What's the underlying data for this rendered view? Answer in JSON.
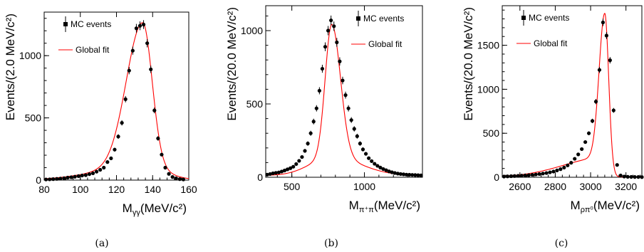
{
  "chart_data": [
    {
      "type": "scatter",
      "panel": "a",
      "caption": "(a)",
      "xlabel": "M_{γγ}(MeV/c²)",
      "ylabel": "Events/(2.0 MeV/c²)",
      "xlim": [
        80,
        160
      ],
      "ylim": [
        0,
        1350
      ],
      "xticks": [
        80,
        100,
        120,
        140,
        160
      ],
      "yticks": [
        0,
        500,
        1000
      ],
      "legend": {
        "position": "top-left",
        "entries": [
          "MC events",
          "Global fit"
        ]
      },
      "series": [
        {
          "name": "MC events",
          "x": [
            81,
            83,
            85,
            87,
            89,
            91,
            93,
            95,
            97,
            99,
            101,
            103,
            105,
            107,
            109,
            111,
            113,
            115,
            117,
            119,
            121,
            123,
            125,
            127,
            129,
            131,
            133,
            135,
            137,
            139,
            141,
            143,
            145,
            147,
            149,
            151,
            153,
            155,
            157
          ],
          "y": [
            5,
            6,
            8,
            10,
            12,
            15,
            20,
            23,
            27,
            32,
            37,
            40,
            48,
            55,
            68,
            83,
            100,
            145,
            175,
            245,
            350,
            460,
            650,
            880,
            1040,
            1220,
            1240,
            1250,
            1100,
            890,
            560,
            335,
            205,
            100,
            50,
            25,
            15,
            8,
            5
          ]
        },
        {
          "name": "Global fit",
          "curve": "peak",
          "peak": {
            "mu": 134.5,
            "amp": 1265,
            "sigL": 9.0,
            "sigR": 5.2,
            "tailL": 25.0,
            "tailR": 12.0,
            "fracTail": 0.09,
            "bkg": 0
          }
        }
      ]
    },
    {
      "type": "scatter",
      "panel": "b",
      "caption": "(b)",
      "xlabel": "M_{π⁺π}(MeV/c²)",
      "ylabel": "Events/(20.0 MeV/c²)",
      "xlim": [
        320,
        1400
      ],
      "ylim": [
        0,
        1170
      ],
      "xticks": [
        500,
        1000
      ],
      "yticks": [
        0,
        500,
        1000
      ],
      "legend": {
        "position": "top-right",
        "entries": [
          "MC events",
          "Global fit"
        ]
      },
      "series": [
        {
          "name": "MC events",
          "x": [
            330,
            350,
            370,
            390,
            410,
            430,
            450,
            470,
            490,
            510,
            530,
            550,
            570,
            590,
            610,
            630,
            650,
            670,
            690,
            710,
            730,
            750,
            770,
            790,
            810,
            830,
            850,
            870,
            890,
            910,
            930,
            950,
            970,
            990,
            1010,
            1030,
            1050,
            1070,
            1090,
            1110,
            1130,
            1150,
            1170,
            1190,
            1210,
            1230,
            1250,
            1270,
            1290,
            1310,
            1330,
            1350,
            1370,
            1390
          ],
          "y": [
            18,
            22,
            27,
            30,
            33,
            39,
            46,
            54,
            62,
            72,
            90,
            112,
            138,
            180,
            230,
            300,
            380,
            470,
            590,
            740,
            890,
            1000,
            1070,
            1030,
            920,
            790,
            660,
            560,
            470,
            390,
            330,
            280,
            230,
            190,
            160,
            130,
            110,
            92,
            78,
            66,
            56,
            48,
            40,
            34,
            29,
            25,
            22,
            20,
            18,
            17,
            16,
            15,
            14,
            13
          ]
        },
        {
          "name": "Global fit",
          "curve": "peak",
          "peak": {
            "mu": 775,
            "amp": 1030,
            "sigL": 45,
            "sigR": 60,
            "tailL": 150,
            "tailR": 200,
            "fracTail": 0.12,
            "bkg": 12
          }
        }
      ]
    },
    {
      "type": "scatter",
      "panel": "c",
      "caption": "(c)",
      "xlabel": "M_{ρπ⁰}(MeV/c²)",
      "ylabel": "Events/(20.0 MeV/c²)",
      "xlim": [
        2500,
        3290
      ],
      "ylim": [
        0,
        1950
      ],
      "xticks": [
        2600,
        2800,
        3000,
        3200
      ],
      "yticks": [
        0,
        500,
        1000,
        1500
      ],
      "legend": {
        "position": "top-left",
        "entries": [
          "MC events",
          "Global fit"
        ]
      },
      "series": [
        {
          "name": "MC events",
          "x": [
            2510,
            2530,
            2550,
            2570,
            2590,
            2610,
            2630,
            2650,
            2670,
            2690,
            2710,
            2730,
            2750,
            2770,
            2790,
            2810,
            2830,
            2850,
            2870,
            2890,
            2910,
            2930,
            2950,
            2970,
            2990,
            3010,
            3030,
            3050,
            3070,
            3090,
            3110,
            3130,
            3150,
            3170,
            3190,
            3210,
            3230,
            3250,
            3270,
            3290
          ],
          "y": [
            8,
            10,
            12,
            14,
            16,
            18,
            21,
            24,
            28,
            32,
            37,
            42,
            48,
            56,
            65,
            78,
            92,
            110,
            135,
            165,
            210,
            260,
            320,
            400,
            500,
            640,
            860,
            1220,
            1760,
            1610,
            1330,
            760,
            140,
            20,
            8,
            5,
            4,
            3,
            3,
            2
          ]
        },
        {
          "name": "Global fit",
          "curve": "peak",
          "peak": {
            "mu": 3080,
            "amp": 1860,
            "sigL": 32,
            "sigR": 22,
            "tailL": 230,
            "tailR": 25,
            "fracTail": 0.12,
            "bkg": 3
          }
        }
      ]
    }
  ]
}
